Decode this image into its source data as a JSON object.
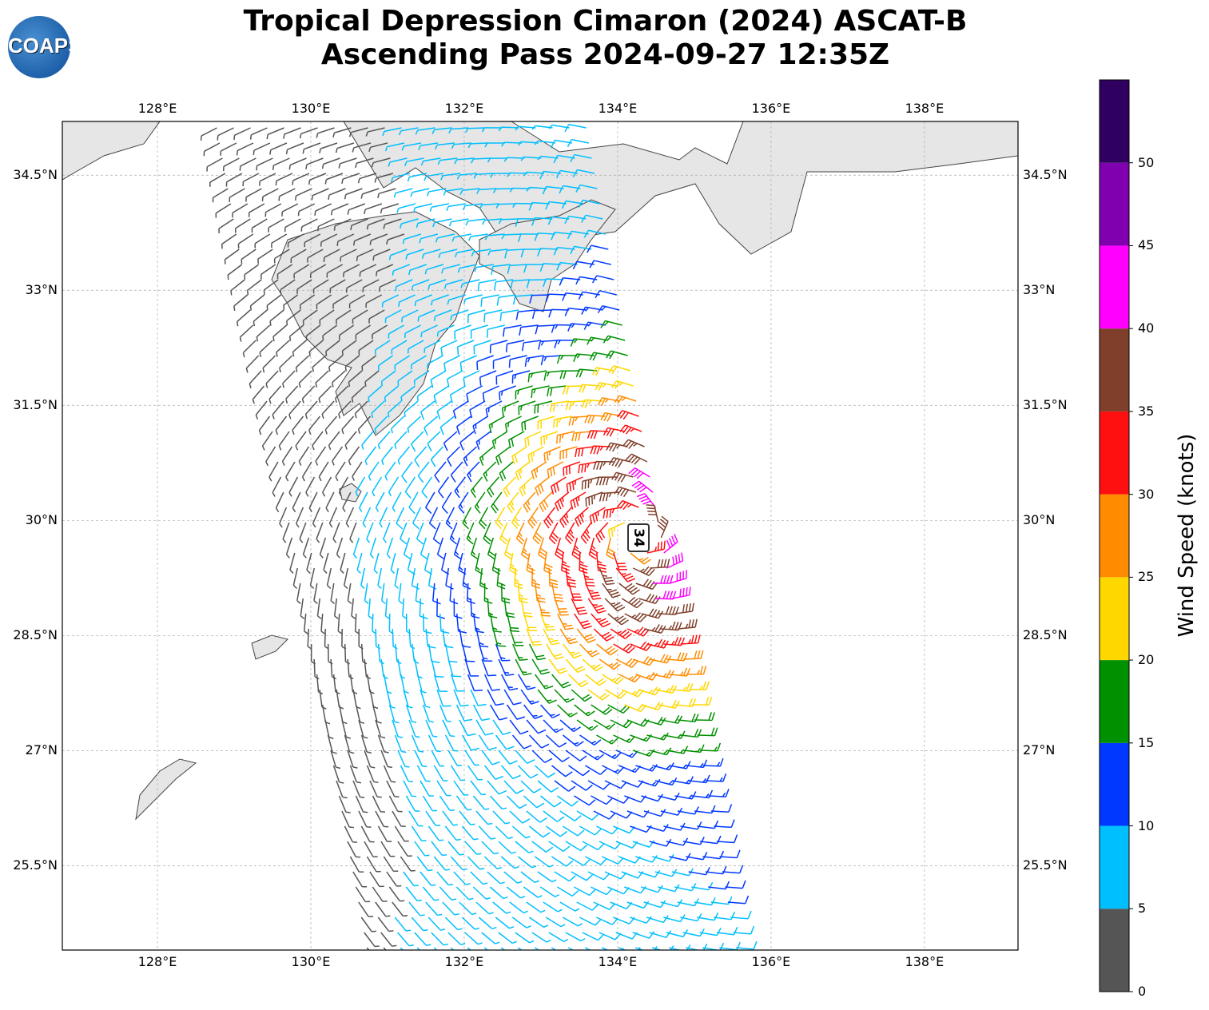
{
  "title": {
    "line1": "Tropical Depression Cimaron (2024) ASCAT-B",
    "line2": "Ascending Pass 2024-09-27 12:35Z"
  },
  "logo": {
    "text": "COAPS"
  },
  "map": {
    "lon_range": [
      126.76,
      139.22
    ],
    "lat_range": [
      24.4,
      35.2
    ],
    "lon_ticks": [
      "128°E",
      "130°E",
      "132°E",
      "134°E",
      "136°E",
      "138°E"
    ],
    "lon_tick_values": [
      128,
      130,
      132,
      134,
      136,
      138
    ],
    "lat_ticks": [
      "34.5°N",
      "33°N",
      "31.5°N",
      "30°N",
      "28.5°N",
      "27°N",
      "25.5°N"
    ],
    "lat_tick_values": [
      34.5,
      33,
      31.5,
      30,
      28.5,
      27,
      25.5
    ],
    "center_label": "34",
    "center": [
      134.25,
      29.8
    ]
  },
  "colorbar": {
    "label": "Wind Speed (knots)",
    "ticks": [
      "0",
      "5",
      "10",
      "15",
      "20",
      "25",
      "30",
      "35",
      "40",
      "45",
      "50"
    ],
    "bins": [
      0,
      5,
      10,
      15,
      20,
      25,
      30,
      35,
      40,
      45,
      50,
      55
    ],
    "colors": [
      "#555555",
      "#00bfff",
      "#0038ff",
      "#009000",
      "#ffd700",
      "#ff8c00",
      "#ff1010",
      "#7f3f2a",
      "#ff00ff",
      "#8000b0",
      "#300060"
    ]
  }
}
